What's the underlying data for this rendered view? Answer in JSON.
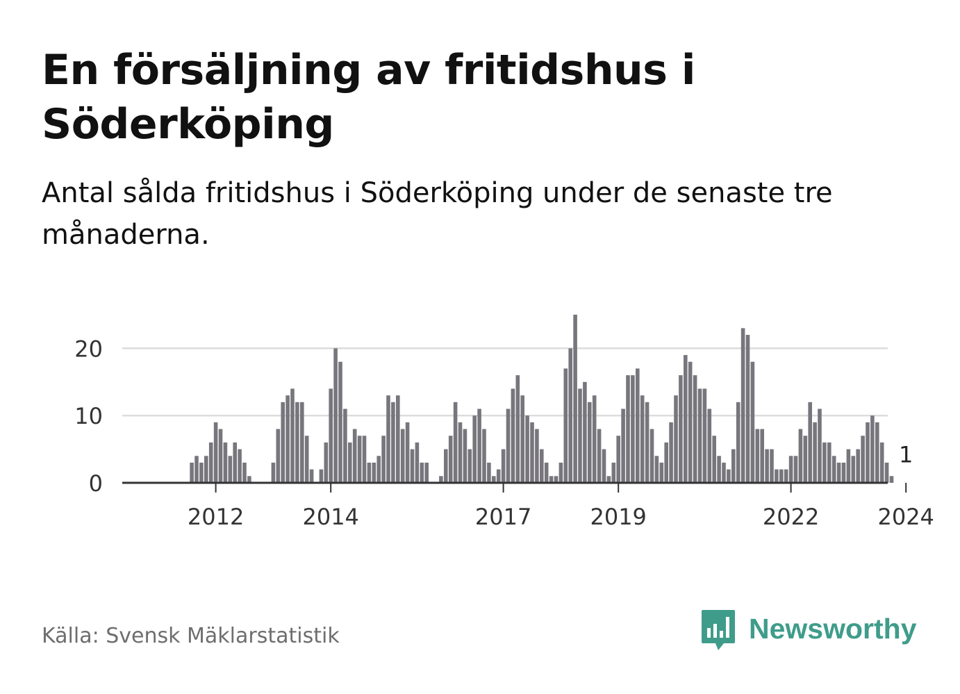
{
  "title": "En försäljning av fritidshus i Söderköping",
  "subtitle": "Antal sålda fritidshus i Söderköping under de senaste tre månaderna.",
  "source": "Källa: Svensk Mäklarstatistik",
  "brand": {
    "name": "Newsworthy",
    "color": "#3f9c8b",
    "icon": "bar-chart-speech-bubble-icon"
  },
  "colors": {
    "bar": "#78767d",
    "highlight": "#2aa68f",
    "grid": "#dcdcdc",
    "axis": "#333333"
  },
  "chart_data": {
    "type": "bar",
    "title": "En försäljning av fritidshus i Söderköping",
    "xlabel": "",
    "ylabel": "",
    "ylim": [
      0,
      25
    ],
    "yticks": [
      0,
      10,
      20
    ],
    "xtick_labels": [
      "2012",
      "2014",
      "2017",
      "2019",
      "2022",
      "2024"
    ],
    "xtick_label_years": [
      2012,
      2014,
      2017,
      2019,
      2022,
      2024
    ],
    "start": "2011-01",
    "grid": true,
    "legend": "none",
    "highlight": {
      "label": "1",
      "value": 1,
      "index": 156
    },
    "values": [
      0,
      0,
      0,
      0,
      0,
      0,
      0,
      3,
      4,
      3,
      4,
      6,
      9,
      8,
      6,
      4,
      6,
      5,
      3,
      1,
      0,
      0,
      0,
      0,
      3,
      8,
      12,
      13,
      14,
      12,
      12,
      7,
      2,
      0,
      2,
      6,
      14,
      20,
      18,
      11,
      6,
      8,
      7,
      7,
      3,
      3,
      4,
      7,
      13,
      12,
      13,
      8,
      9,
      5,
      6,
      3,
      3,
      0,
      0,
      1,
      5,
      7,
      12,
      9,
      8,
      5,
      10,
      11,
      8,
      3,
      1,
      2,
      5,
      11,
      14,
      16,
      13,
      10,
      9,
      8,
      5,
      3,
      1,
      1,
      3,
      17,
      20,
      25,
      14,
      15,
      12,
      13,
      8,
      5,
      1,
      3,
      7,
      11,
      16,
      16,
      17,
      13,
      12,
      8,
      4,
      3,
      6,
      9,
      13,
      16,
      19,
      18,
      16,
      14,
      14,
      11,
      7,
      4,
      3,
      2,
      5,
      12,
      23,
      22,
      18,
      8,
      8,
      5,
      5,
      2,
      2,
      2,
      4,
      4,
      8,
      7,
      12,
      9,
      11,
      6,
      6,
      4,
      3,
      3,
      5,
      4,
      5,
      7,
      9,
      10,
      9,
      6,
      3,
      1
    ]
  }
}
